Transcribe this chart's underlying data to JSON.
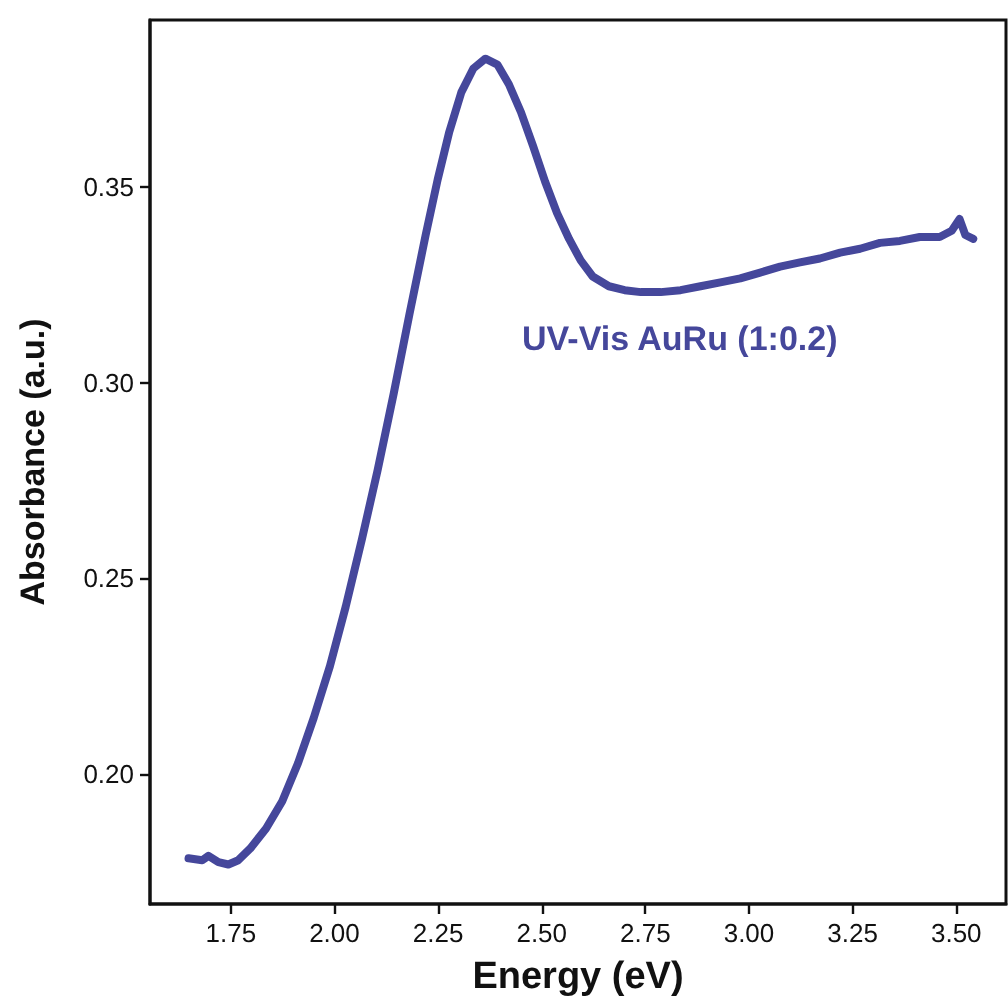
{
  "chart_data": {
    "type": "line",
    "xlabel": "Energy (eV)",
    "ylabel": "Absorbance (a.u.)",
    "xlim": [
      1.555,
      3.62
    ],
    "ylim": [
      0.1667,
      0.3928
    ],
    "xticks": [
      {
        "value": 1.75,
        "label": "1.75"
      },
      {
        "value": 2.0,
        "label": "2.00"
      },
      {
        "value": 2.25,
        "label": "2.25"
      },
      {
        "value": 2.5,
        "label": "2.50"
      },
      {
        "value": 2.75,
        "label": "2.75"
      },
      {
        "value": 3.0,
        "label": "3.00"
      },
      {
        "value": 3.25,
        "label": "3.25"
      },
      {
        "value": 3.5,
        "label": "3.50"
      }
    ],
    "yticks": [
      {
        "value": 0.2,
        "label": "0.20"
      },
      {
        "value": 0.25,
        "label": "0.25"
      },
      {
        "value": 0.3,
        "label": "0.30"
      },
      {
        "value": 0.35,
        "label": "0.35"
      }
    ],
    "grid": false,
    "legend": false,
    "marker": "none",
    "line_style": "solid",
    "series": [
      {
        "name": "UV-Vis AuRu (1:0.2)",
        "color": "#45479b",
        "x": [
          1.648,
          1.681,
          1.696,
          1.72,
          1.744,
          1.768,
          1.797,
          1.835,
          1.874,
          1.912,
          1.95,
          1.989,
          2.027,
          2.066,
          2.104,
          2.143,
          2.181,
          2.22,
          2.249,
          2.277,
          2.306,
          2.335,
          2.364,
          2.393,
          2.421,
          2.45,
          2.479,
          2.508,
          2.537,
          2.566,
          2.594,
          2.623,
          2.662,
          2.7,
          2.739,
          2.787,
          2.835,
          2.883,
          2.931,
          2.979,
          3.027,
          3.075,
          3.123,
          3.171,
          3.22,
          3.268,
          3.316,
          3.364,
          3.412,
          3.46,
          3.489,
          3.508,
          3.522,
          3.541
        ],
        "values": [
          0.1784,
          0.1779,
          0.179,
          0.1774,
          0.1768,
          0.1779,
          0.1809,
          0.186,
          0.193,
          0.2027,
          0.2143,
          0.2275,
          0.2427,
          0.2599,
          0.2776,
          0.2973,
          0.3176,
          0.3378,
          0.352,
          0.3642,
          0.3743,
          0.3804,
          0.3829,
          0.3814,
          0.3763,
          0.3692,
          0.3606,
          0.3515,
          0.3434,
          0.3368,
          0.3313,
          0.3272,
          0.3247,
          0.3237,
          0.3232,
          0.3232,
          0.3237,
          0.3247,
          0.3257,
          0.3267,
          0.3282,
          0.3297,
          0.3308,
          0.3318,
          0.3333,
          0.3343,
          0.3358,
          0.3363,
          0.3373,
          0.3373,
          0.3389,
          0.3419,
          0.3378,
          0.3368
        ]
      }
    ]
  }
}
